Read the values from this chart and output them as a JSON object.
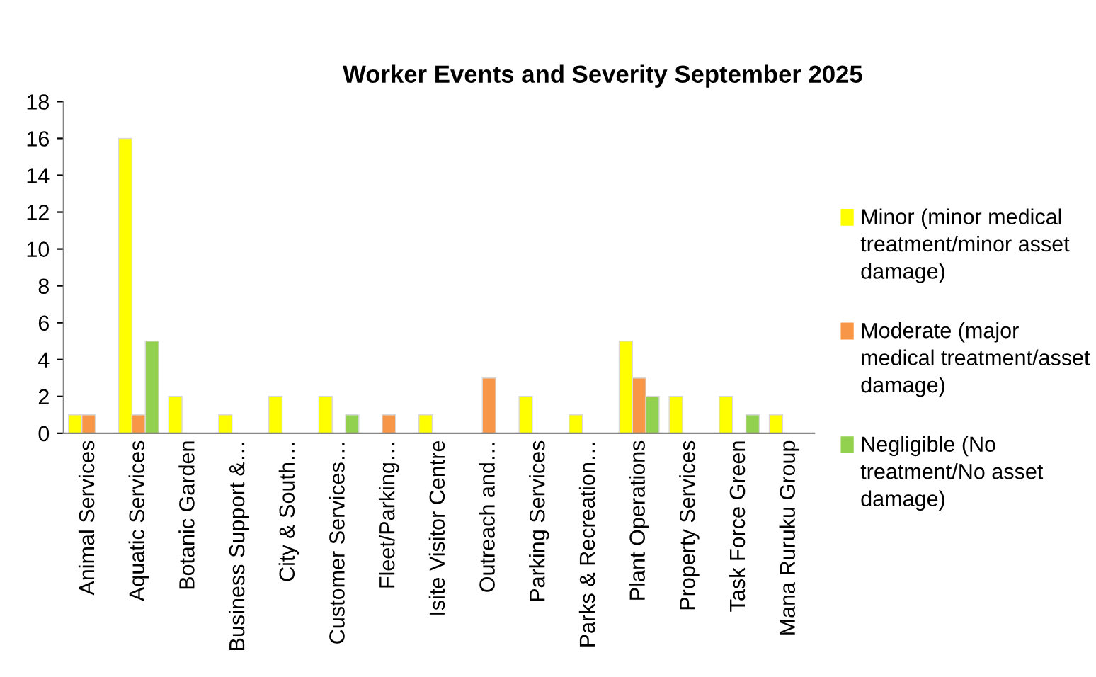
{
  "chart_data": {
    "type": "bar",
    "title": "Worker Events and Severity September 2025",
    "categories": [
      "Animal Services",
      "Aquatic Services",
      "Botanic Garden",
      "Business Support &…",
      "City & South…",
      "Customer Services…",
      "Fleet/Parking…",
      "Isite Visitor Centre",
      "Outreach and…",
      "Parking Services",
      "Parks & Recreation…",
      "Plant Operations",
      "Property Services",
      "Task Force Green",
      "Mana Ruruku Group"
    ],
    "series": [
      {
        "name": "Minor (minor medical treatment/minor asset damage)",
        "color": "#ffff00",
        "values": [
          1,
          16,
          2,
          1,
          2,
          2,
          null,
          1,
          null,
          2,
          1,
          5,
          2,
          2,
          1
        ]
      },
      {
        "name": "Moderate (major medical treatment/asset damage)",
        "color": "#f79646",
        "values": [
          1,
          1,
          null,
          null,
          null,
          null,
          1,
          null,
          3,
          null,
          null,
          3,
          null,
          null,
          null
        ]
      },
      {
        "name": "Negligible (No treatment/No asset damage)",
        "color": "#92d050",
        "values": [
          null,
          5,
          null,
          null,
          null,
          1,
          null,
          null,
          null,
          null,
          null,
          2,
          null,
          1,
          null
        ]
      }
    ],
    "ylim": [
      0,
      18
    ],
    "yticks": [
      0,
      2,
      4,
      6,
      8,
      10,
      12,
      14,
      16,
      18
    ],
    "grid": false,
    "legend": "right"
  }
}
